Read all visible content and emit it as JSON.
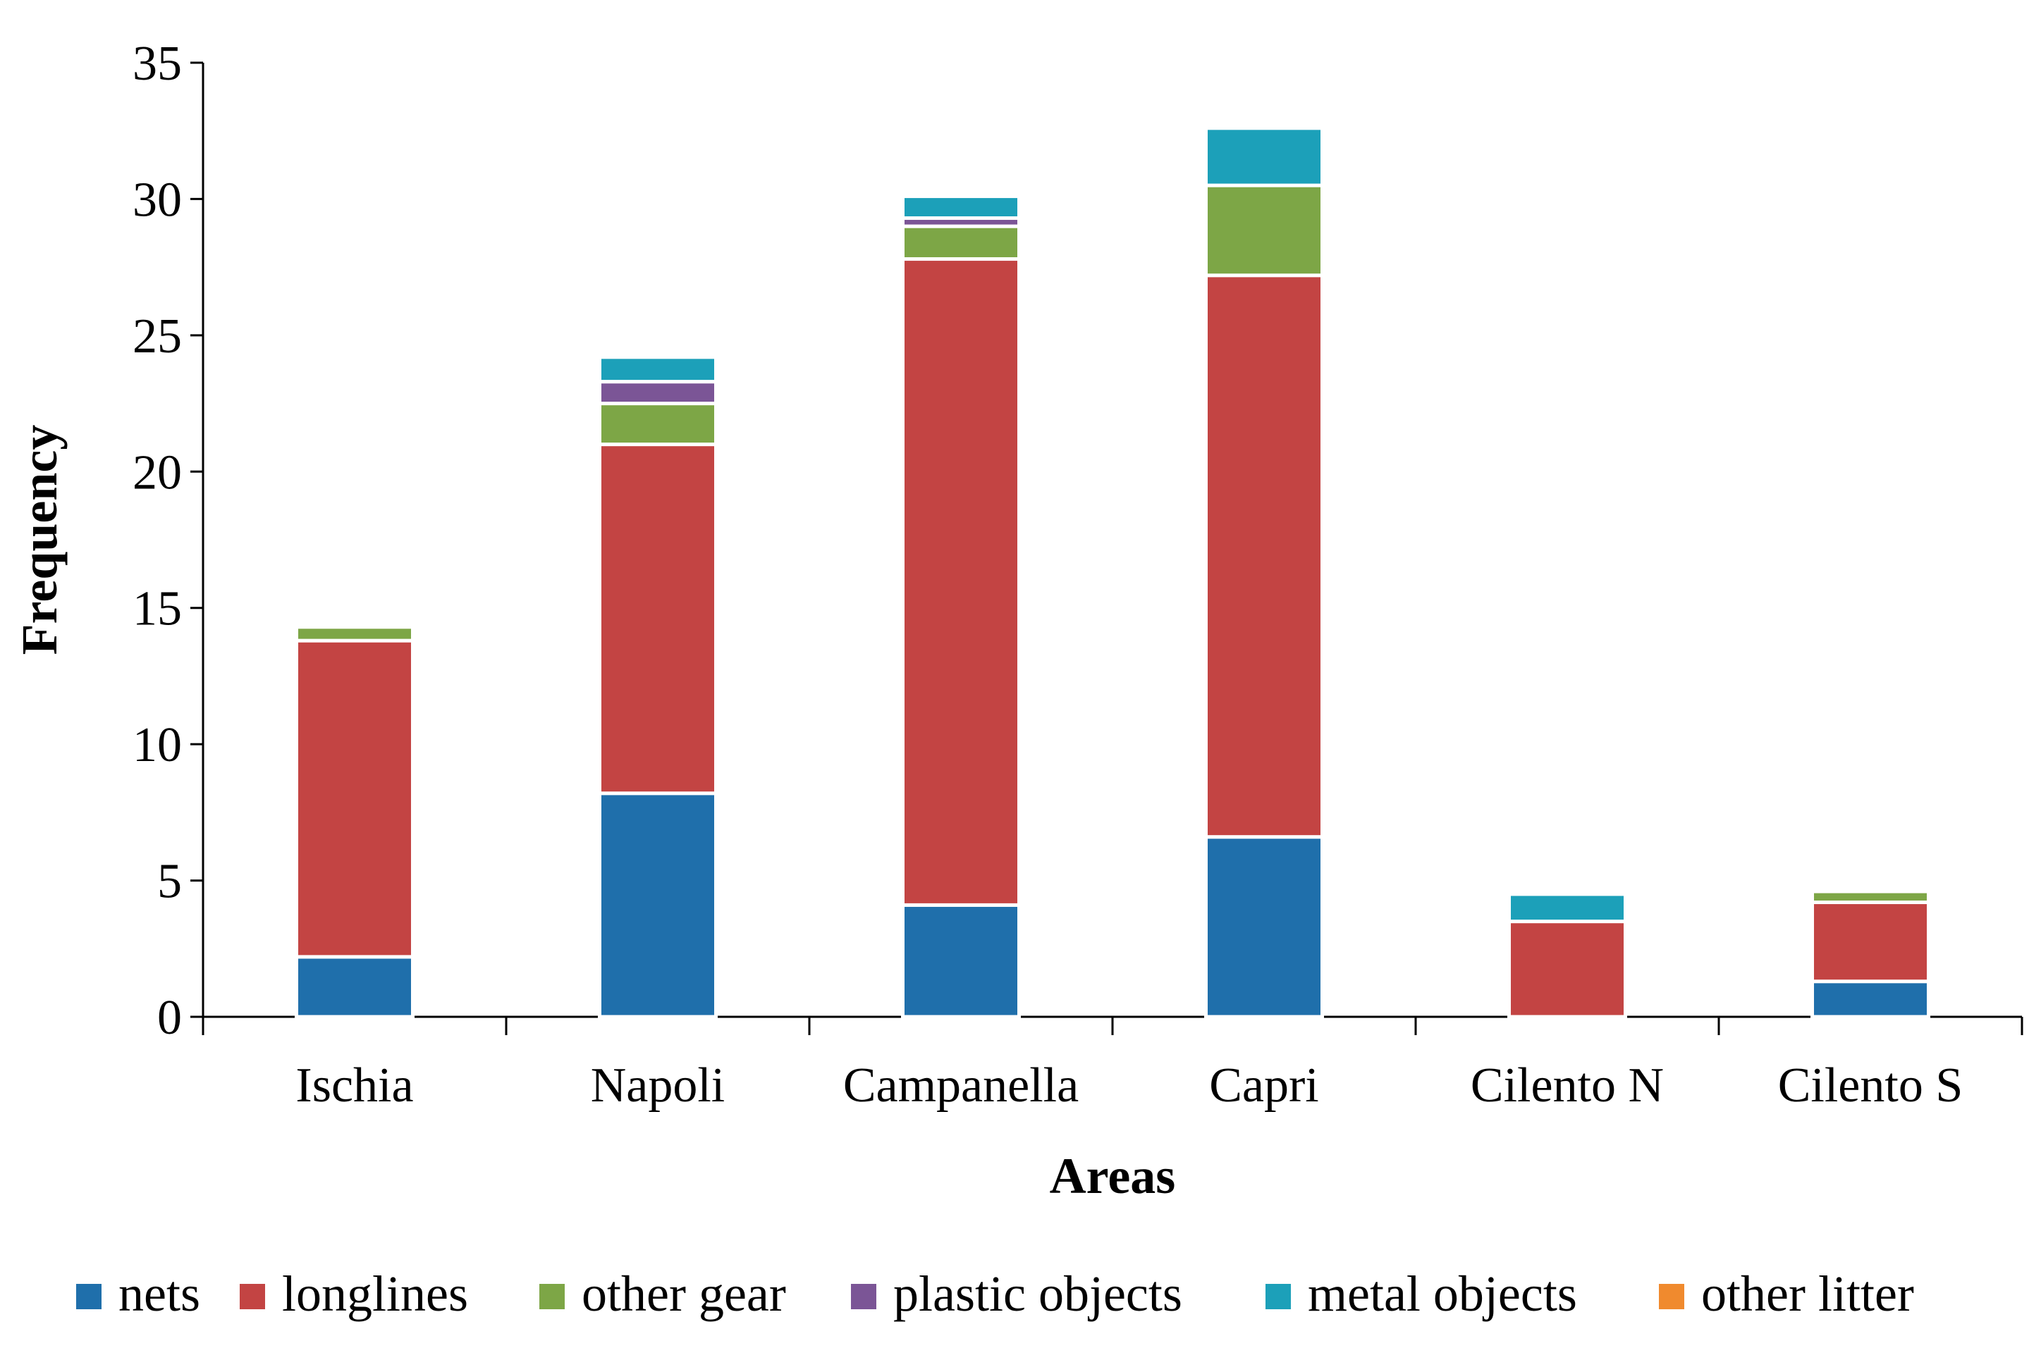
{
  "chart_data": {
    "type": "bar",
    "stacked": true,
    "xlabel": "Areas",
    "ylabel": "Frequency",
    "ylim": [
      0,
      35
    ],
    "yticks": [
      0,
      5,
      10,
      15,
      20,
      25,
      30,
      35
    ],
    "categories": [
      "Ischia",
      "Napoli",
      "Campanella",
      "Capri",
      "Cilento N",
      "Cilento S"
    ],
    "series": [
      {
        "name": "nets",
        "color": "#1f6fab",
        "values": [
          2.2,
          8.2,
          4.1,
          6.6,
          0,
          1.3
        ]
      },
      {
        "name": "longlines",
        "color": "#c34443",
        "values": [
          11.6,
          12.8,
          23.7,
          20.6,
          3.5,
          2.9
        ]
      },
      {
        "name": "other gear",
        "color": "#7da646",
        "values": [
          0.5,
          1.5,
          1.2,
          3.3,
          0,
          0.4
        ]
      },
      {
        "name": "plastic objects",
        "color": "#7b5596",
        "values": [
          0,
          0.8,
          0.3,
          0,
          0,
          0
        ]
      },
      {
        "name": "metal objects",
        "color": "#1ca0b9",
        "values": [
          0,
          0.9,
          0.8,
          2.1,
          1.0,
          0
        ]
      },
      {
        "name": "other litter",
        "color": "#f08a2e",
        "values": [
          0,
          0,
          0,
          0,
          0,
          0
        ]
      }
    ],
    "legend_position": "bottom"
  }
}
